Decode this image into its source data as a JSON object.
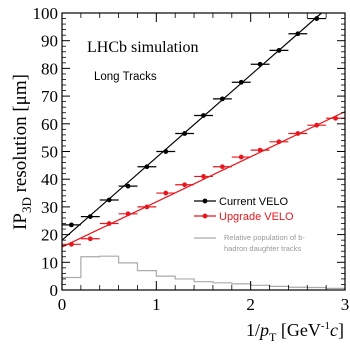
{
  "chart_data": {
    "type": "scatter",
    "title": "LHCb simulation",
    "subtitle": "Long Tracks",
    "xlabel": {
      "main": "1/",
      "var": "p",
      "var_sub": "T",
      "open": " [GeV",
      "sup": "-1",
      "unit_var": "c",
      "close": "]"
    },
    "ylabel": {
      "main": "IP",
      "sub": "3D",
      "rest": " resolution [μm]"
    },
    "xlim": [
      0,
      3
    ],
    "ylim": [
      0,
      100
    ],
    "x_ticks": [
      0,
      1,
      2,
      3
    ],
    "x_tick_labels": [
      "0",
      "1",
      "2",
      "3"
    ],
    "y_ticks": [
      0,
      10,
      20,
      30,
      40,
      50,
      60,
      70,
      80,
      90,
      100
    ],
    "y_tick_labels": [
      "0",
      "10",
      "20",
      "30",
      "40",
      "50",
      "60",
      "70",
      "80",
      "90",
      "100"
    ],
    "legend_position": "middle-right",
    "series": [
      {
        "name": "Current VELO",
        "color": "#000000",
        "x": [
          0.1,
          0.3,
          0.5,
          0.7,
          0.9,
          1.1,
          1.3,
          1.5,
          1.7,
          1.9,
          2.1,
          2.3,
          2.5,
          2.7
        ],
        "y": [
          23.5,
          26.5,
          32.5,
          37.5,
          44.5,
          50.0,
          56.5,
          63.0,
          69.0,
          75.0,
          81.5,
          86.5,
          92.5,
          98.0
        ],
        "x_err": 0.1,
        "fit": [
          18.0,
          29.8
        ]
      },
      {
        "name": "Upgrade VELO",
        "color": "#e8161d",
        "x": [
          0.1,
          0.3,
          0.5,
          0.7,
          0.9,
          1.1,
          1.3,
          1.5,
          1.7,
          1.9,
          2.1,
          2.3,
          2.5,
          2.7,
          2.9
        ],
        "y": [
          16.5,
          18.5,
          24.0,
          27.5,
          30.0,
          35.0,
          38.0,
          41.0,
          44.5,
          48.0,
          50.5,
          53.5,
          56.5,
          59.5,
          62.0
        ],
        "x_err": 0.1,
        "fit": [
          15.5,
          16.3
        ]
      },
      {
        "name": "Relative population of b-hadron daughter tracks",
        "legend_lines": [
          "Relative population of b-",
          "hadron daughter tracks"
        ],
        "type": "histogram",
        "color": "#aaaaaa",
        "bin_edges": [
          0,
          0.2,
          0.4,
          0.6,
          0.8,
          1.0,
          1.2,
          1.4,
          1.6,
          1.8,
          2.0,
          2.2,
          2.4,
          2.6,
          2.8,
          3.0
        ],
        "values": [
          4.5,
          12.0,
          12.2,
          9.8,
          7.0,
          5.0,
          4.0,
          3.0,
          2.6,
          2.2,
          1.7,
          1.3,
          1.0,
          0.9,
          0.6
        ]
      }
    ]
  }
}
